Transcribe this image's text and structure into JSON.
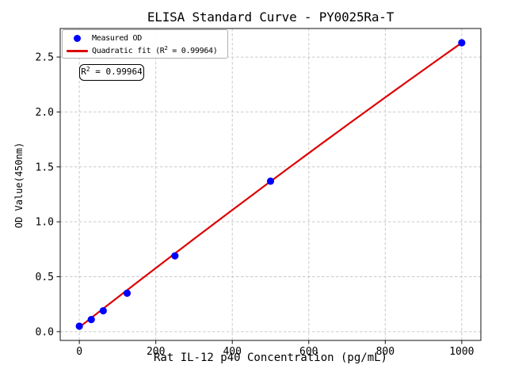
{
  "figure": {
    "background": "#ffffff"
  },
  "chart_data": {
    "type": "scatter",
    "title": "ELISA Standard Curve - PY0025Ra-T",
    "xlabel": "Rat IL-12 p40 Concentration (pg/mL)",
    "ylabel": "OD Value(450nm)",
    "x_ticks": [
      0,
      200,
      400,
      600,
      800,
      1000
    ],
    "x_tick_labels": [
      "0",
      "200",
      "400",
      "600",
      "800",
      "1000"
    ],
    "y_ticks": [
      0.0,
      0.5,
      1.0,
      1.5,
      2.0,
      2.5
    ],
    "y_tick_labels": [
      "0.0",
      "0.5",
      "1.0",
      "1.5",
      "2.0",
      "2.5"
    ],
    "xlim": [
      -50,
      1050
    ],
    "ylim": [
      -0.08,
      2.76
    ],
    "grid": true,
    "legend_position": "upper left",
    "series": [
      {
        "name": "Measured OD",
        "type": "scatter",
        "color": "#0000ff",
        "points": [
          [
            0,
            0.05
          ],
          [
            31.25,
            0.11
          ],
          [
            62.5,
            0.19
          ],
          [
            125,
            0.35
          ],
          [
            250,
            0.69
          ],
          [
            500,
            1.37
          ],
          [
            1000,
            2.63
          ]
        ]
      },
      {
        "name": "Quadratic fit",
        "type": "line",
        "color": "#dd0000",
        "fit": "quadratic",
        "coefficients": [
          0.04,
          0.00272,
          -1.3e-07
        ],
        "r_squared": 0.99964,
        "x_range": [
          0,
          1000
        ]
      }
    ]
  },
  "legend": {
    "items": [
      {
        "label": "Measured OD",
        "marker": "dot",
        "color": "#0000ff"
      },
      {
        "label_prefix": "Quadratic fit (R",
        "label_sup": "2",
        "label_suffix": " = 0.99964)",
        "marker": "line",
        "color": "#dd0000"
      }
    ]
  },
  "annotation": {
    "prefix": "R",
    "sup": "2",
    "suffix": " = 0.99964"
  },
  "colors": {
    "marker_blue": "#0000ff",
    "fit_red": "#dd0000",
    "grid_gray": "#c9c9c9",
    "spine_black": "#111111",
    "legend_border": "#b0b0b0"
  }
}
